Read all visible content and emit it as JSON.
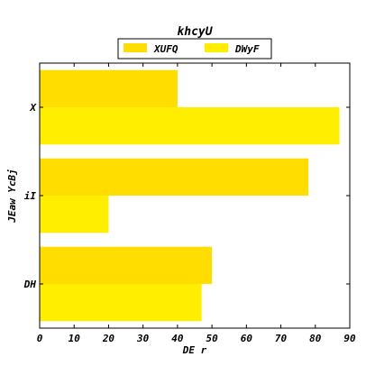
{
  "chart_data": {
    "type": "bar",
    "orientation": "horizontal",
    "title": "khcyU",
    "xlabel": "DE r",
    "ylabel": "JEaw YcBj",
    "categories": [
      "DH",
      "iI",
      "X"
    ],
    "series": [
      {
        "name": "XUFQ",
        "color": "#ffdd00",
        "values": [
          50,
          78,
          40
        ]
      },
      {
        "name": "DWyF",
        "color": "#ffee00",
        "values": [
          47,
          20,
          87
        ]
      }
    ],
    "xlim": [
      0,
      90
    ],
    "xticks": [
      0,
      10,
      20,
      30,
      40,
      50,
      60,
      70,
      80,
      90
    ],
    "grid": false,
    "legend_position": "top-center"
  }
}
